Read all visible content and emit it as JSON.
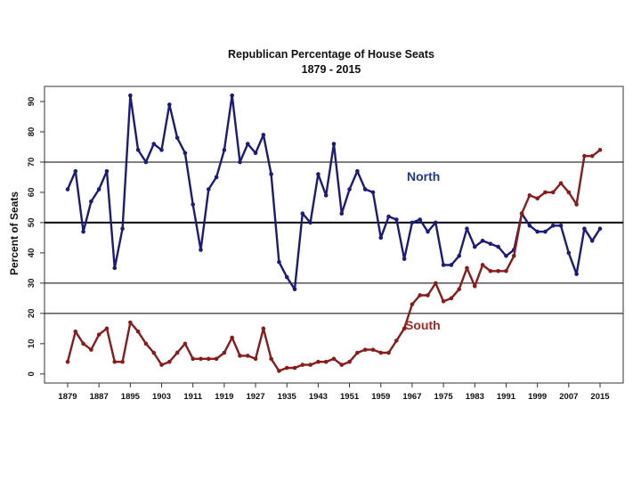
{
  "chart_data": {
    "type": "line",
    "title": "Republican Percentage of House Seats",
    "subtitle": "1879 - 2015",
    "xlabel": "",
    "ylabel": "Percent of Seats",
    "xlim": [
      1879,
      2015
    ],
    "ylim": [
      -3,
      95
    ],
    "x_ticks": [
      "1879",
      "1887",
      "1895",
      "1903",
      "1911",
      "1919",
      "1927",
      "1935",
      "1943",
      "1951",
      "1959",
      "1967",
      "1975",
      "1983",
      "1991",
      "1999",
      "2007",
      "2015"
    ],
    "y_ticks": [
      0,
      10,
      20,
      30,
      40,
      50,
      60,
      70,
      80,
      90
    ],
    "reference_lines": [
      20,
      30,
      50,
      70
    ],
    "reference_lines_bold": [
      50
    ],
    "x": [
      1879,
      1881,
      1883,
      1885,
      1887,
      1889,
      1891,
      1893,
      1895,
      1897,
      1899,
      1901,
      1903,
      1905,
      1907,
      1909,
      1911,
      1913,
      1915,
      1917,
      1919,
      1921,
      1923,
      1925,
      1927,
      1929,
      1931,
      1933,
      1935,
      1937,
      1939,
      1941,
      1943,
      1945,
      1947,
      1949,
      1951,
      1953,
      1955,
      1957,
      1959,
      1961,
      1963,
      1965,
      1967,
      1969,
      1971,
      1973,
      1975,
      1977,
      1979,
      1981,
      1983,
      1985,
      1987,
      1989,
      1991,
      1993,
      1995,
      1997,
      1999,
      2001,
      2003,
      2005,
      2007,
      2009,
      2011,
      2013,
      2015
    ],
    "series": [
      {
        "name": "North",
        "color": "#1a1a80",
        "label_color": "#1f3a8a",
        "values": [
          61,
          67,
          47,
          57,
          61,
          67,
          35,
          48,
          92,
          74,
          70,
          76,
          74,
          89,
          78,
          73,
          56,
          41,
          61,
          65,
          74,
          92,
          70,
          76,
          73,
          79,
          66,
          37,
          32,
          28,
          53,
          50,
          66,
          59,
          76,
          53,
          61,
          67,
          61,
          60,
          45,
          52,
          51,
          38,
          50,
          51,
          47,
          50,
          36,
          36,
          39,
          48,
          42,
          44,
          43,
          42,
          39,
          41,
          53,
          49,
          47,
          47,
          49,
          49,
          40,
          33,
          48,
          44,
          48
        ]
      },
      {
        "name": "South",
        "color": "#8b1a1a",
        "label_color": "#a82828",
        "values": [
          4,
          14,
          10,
          8,
          13,
          15,
          4,
          4,
          17,
          14,
          10,
          7,
          3,
          4,
          7,
          10,
          5,
          5,
          5,
          5,
          7,
          12,
          6,
          6,
          5,
          15,
          5,
          1,
          2,
          2,
          3,
          3,
          4,
          4,
          5,
          3,
          4,
          7,
          8,
          8,
          7,
          7,
          11,
          15,
          23,
          26,
          26,
          30,
          24,
          25,
          28,
          35,
          29,
          36,
          34,
          34,
          34,
          39,
          53,
          59,
          58,
          60,
          60,
          63,
          60,
          56,
          72,
          72,
          74
        ]
      }
    ]
  }
}
